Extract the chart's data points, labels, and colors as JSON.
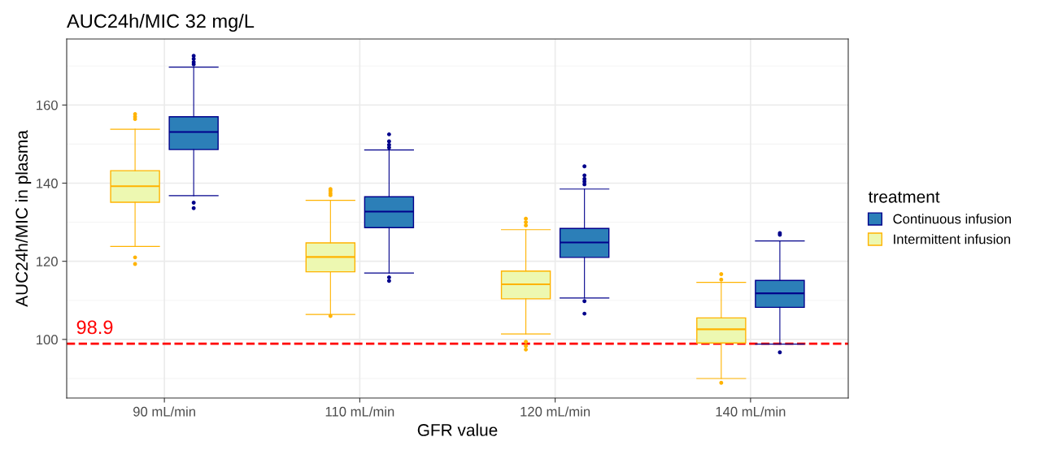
{
  "chart_data": {
    "type": "box",
    "title": "AUC24h/MIC 32 mg/L",
    "xlabel": "GFR value",
    "ylabel": "AUC24h/MIC in plasma",
    "legend_title": "treatment",
    "categories": [
      "90 mL/min",
      "110 mL/min",
      "120 mL/min",
      "140 mL/min"
    ],
    "ylim": [
      85.0,
      176.9
    ],
    "yticks": [
      100,
      120,
      140,
      160
    ],
    "grid": true,
    "legend": "right",
    "ref_lines": [
      {
        "axis": "y",
        "value": 98.9,
        "label": "98.9",
        "color": "#ff0000",
        "line_style": "dashed"
      }
    ],
    "series": [
      {
        "name": "Intermittent infusion",
        "color": "#edf8b1",
        "boxes": [
          {
            "low": 123.8,
            "q1": 135.1,
            "median": 139.2,
            "q3": 143.2,
            "high": 153.8,
            "outliers": [
              157.7,
              157.0,
              156.4,
              121.0,
              119.3
            ]
          },
          {
            "low": 106.4,
            "q1": 117.3,
            "median": 121.1,
            "q3": 124.7,
            "high": 135.6,
            "outliers": [
              138.5,
              138.0,
              137.4,
              136.9,
              106.0
            ]
          },
          {
            "low": 101.4,
            "q1": 110.4,
            "median": 114.1,
            "q3": 117.5,
            "high": 128.1,
            "outliers": [
              130.9,
              130.0,
              129.2,
              99.4,
              98.3,
              97.4
            ]
          },
          {
            "low": 90.0,
            "q1": 99.1,
            "median": 102.6,
            "q3": 105.5,
            "high": 114.6,
            "outliers": [
              116.7,
              115.3,
              88.9
            ]
          }
        ]
      },
      {
        "name": "Continuous infusion",
        "color": "#2c7fb8",
        "boxes": [
          {
            "low": 136.8,
            "q1": 148.6,
            "median": 153.1,
            "q3": 157.0,
            "high": 169.7,
            "outliers": [
              172.6,
              171.8,
              171.0,
              170.4,
              135.0,
              133.6
            ]
          },
          {
            "low": 117.0,
            "q1": 128.6,
            "median": 132.7,
            "q3": 136.5,
            "high": 148.5,
            "outliers": [
              152.5,
              150.7,
              149.8,
              149.1,
              115.9,
              115.0
            ]
          },
          {
            "low": 110.6,
            "q1": 121.0,
            "median": 124.8,
            "q3": 128.4,
            "high": 138.5,
            "outliers": [
              144.3,
              142.0,
              141.1,
              140.4,
              139.7,
              109.8,
              106.6
            ]
          },
          {
            "low": 98.8,
            "q1": 108.2,
            "median": 111.8,
            "q3": 115.1,
            "high": 125.2,
            "outliers": [
              127.2,
              126.8,
              96.7
            ]
          }
        ]
      }
    ]
  }
}
